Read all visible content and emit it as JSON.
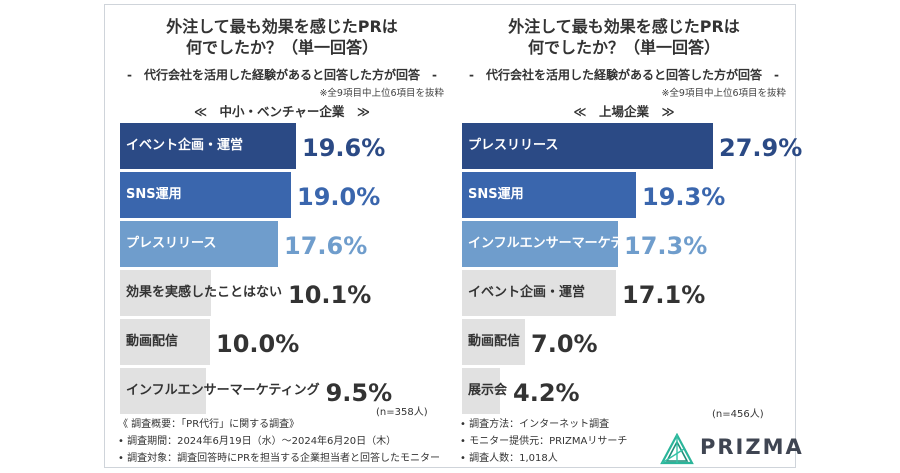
{
  "panels": [
    {
      "title_line1": "外注して最も効果を感じたPRは",
      "title_line2": "何でしたか？（単一回答）",
      "subtitle": "-　代行会社を活用した経験があると回答した方が回答　-",
      "note": "※全9項目中上位6項目を抜粋",
      "segment": "≪　中小・ベンチャー企業　≫",
      "n": "(n=358人)"
    },
    {
      "title_line1": "外注して最も効果を感じたPRは",
      "title_line2": "何でしたか？（単一回答）",
      "subtitle": "-　代行会社を活用した経験があると回答した方が回答　-",
      "note": "※全9項目中上位6項目を抜粋",
      "segment": "≪　上場企業　≫",
      "n": "(n=456人)"
    }
  ],
  "chart_data": [
    {
      "type": "bar",
      "orientation": "horizontal",
      "unit": "%",
      "categories": [
        "イベント企画・運営",
        "SNS運用",
        "プレスリリース",
        "効果を実感したことはない",
        "動画配信",
        "インフルエンサーマーケティング"
      ],
      "values": [
        19.6,
        19.0,
        17.6,
        10.1,
        10.0,
        9.5
      ],
      "value_labels": [
        "19.6%",
        "19.0%",
        "17.6%",
        "10.1%",
        "10.0%",
        "9.5%"
      ],
      "colors": [
        "#2b4a85",
        "#3a66ad",
        "#6f9dcc",
        "#e1e1e1",
        "#e1e1e1",
        "#e1e1e1"
      ],
      "value_colors": [
        "#2b4a85",
        "#3a66ad",
        "#6f9dcc",
        "#333333",
        "#333333",
        "#333333"
      ],
      "xlim": [
        0,
        28
      ]
    },
    {
      "type": "bar",
      "orientation": "horizontal",
      "unit": "%",
      "categories": [
        "プレスリリース",
        "SNS運用",
        "インフルエンサーマーケティング",
        "イベント企画・運営",
        "動画配信",
        "展示会"
      ],
      "values": [
        27.9,
        19.3,
        17.3,
        17.1,
        7.0,
        4.2
      ],
      "value_labels": [
        "27.9%",
        "19.3%",
        "17.3%",
        "17.1%",
        "7.0%",
        "4.2%"
      ],
      "colors": [
        "#2b4a85",
        "#3a66ad",
        "#6f9dcc",
        "#e1e1e1",
        "#e1e1e1",
        "#e1e1e1"
      ],
      "value_colors": [
        "#2b4a85",
        "#3a66ad",
        "#6f9dcc",
        "#333333",
        "#333333",
        "#333333"
      ],
      "xlim": [
        0,
        28
      ]
    }
  ],
  "footer": {
    "left": [
      "《 調査概要：「PR代行」に関する調査》",
      "• 調査期間：2024年6月19日（水）〜2024年6月20日（木）",
      "• 調査対象：調査回答時にPRを担当する企業担当者と回答したモニター"
    ],
    "right": [
      "• 調査方法：インターネット調査",
      "• モニター提供元：PRIZMAリサーチ",
      "• 調査人数：1,018人"
    ]
  },
  "logo": {
    "text": "PRIZMA",
    "icon": "prizma-triangle-logo"
  }
}
